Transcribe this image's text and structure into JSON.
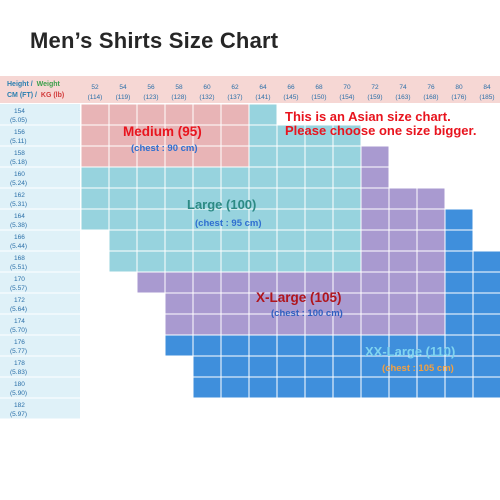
{
  "title": "Men’s Shirts Size Chart",
  "header": {
    "label_line1_a": "Height /",
    "label_line1_b": "Weight",
    "label_line2_a": "CM (FT) /",
    "label_line2_b": "KG (lb)"
  },
  "weights": [
    {
      "kg": "52",
      "lb": "(114)"
    },
    {
      "kg": "54",
      "lb": "(119)"
    },
    {
      "kg": "56",
      "lb": "(123)"
    },
    {
      "kg": "58",
      "lb": "(128)"
    },
    {
      "kg": "60",
      "lb": "(132)"
    },
    {
      "kg": "62",
      "lb": "(137)"
    },
    {
      "kg": "64",
      "lb": "(141)"
    },
    {
      "kg": "66",
      "lb": "(145)"
    },
    {
      "kg": "68",
      "lb": "(150)"
    },
    {
      "kg": "70",
      "lb": "(154)"
    },
    {
      "kg": "72",
      "lb": "(159)"
    },
    {
      "kg": "74",
      "lb": "(163)"
    },
    {
      "kg": "76",
      "lb": "(168)"
    },
    {
      "kg": "80",
      "lb": "(176)"
    },
    {
      "kg": "84",
      "lb": "(185)"
    }
  ],
  "heights": [
    {
      "cm": "154",
      "ft": "(5.05)"
    },
    {
      "cm": "156",
      "ft": "(5.11)"
    },
    {
      "cm": "158",
      "ft": "(5.18)"
    },
    {
      "cm": "160",
      "ft": "(5.24)"
    },
    {
      "cm": "162",
      "ft": "(5.31)"
    },
    {
      "cm": "164",
      "ft": "(5.38)"
    },
    {
      "cm": "166",
      "ft": "(5.44)"
    },
    {
      "cm": "168",
      "ft": "(5.51)"
    },
    {
      "cm": "170",
      "ft": "(5.57)"
    },
    {
      "cm": "172",
      "ft": "(5.64)"
    },
    {
      "cm": "174",
      "ft": "(5.70)"
    },
    {
      "cm": "176",
      "ft": "(5.77)"
    },
    {
      "cm": "178",
      "ft": "(5.83)"
    },
    {
      "cm": "180",
      "ft": "(5.90)"
    },
    {
      "cm": "182",
      "ft": "(5.97)"
    }
  ],
  "grid_cells": [
    "PPPPPPCWWWWWWWW",
    "PPPPPPCCCCWWWWW",
    "PPPPPPCCCCLWWWW",
    "CCCCCCCCCCLWWWW",
    "CCCCCCCCCCLLLWW",
    "CCCCCCCCCCLLLBW",
    "WCCCCCCCCCLLLBW",
    "WCCCCCCCCCLLLBB",
    "WWLLLLLLLLLLLBB",
    "WWWLLLLLLLLLLBB",
    "WWWLLLLLLLLLLBB",
    "WWWBBBBBBBBBBBB",
    "WWWWBBBBBBBBBBB",
    "WWWWBBBBBBBBBBB",
    "WWWWWWWWWWWWWWW"
  ],
  "colors": {
    "P": "#e8b4b6",
    "C": "#97d3de",
    "L": "#a99ad0",
    "B": "#3f8fdc",
    "W": "#ffffff",
    "header_bg": "#f6d7d4",
    "row_label_bg": "#dff1f8",
    "red_note": "#e8141e"
  },
  "note": {
    "line1": "This is an Asian size chart.",
    "line2": "Please choose one size bigger."
  },
  "sizes": [
    {
      "name": "Medium (95)",
      "chest": "(chest : 90 cm)",
      "name_color": "#e8141e",
      "chest_color": "#2f6fd0"
    },
    {
      "name": "Large (100)",
      "chest": "(chest : 95 cm)",
      "name_color": "#2c8a84",
      "chest_color": "#2f6fd0"
    },
    {
      "name": "X-Large (105)",
      "chest": "(chest : 100 cm)",
      "name_color": "#b0151c",
      "chest_color": "#2f5fc0"
    },
    {
      "name": "XX-Large (110)",
      "chest": "(chest : 105 cm)",
      "name_color": "#7fd4f0",
      "chest_color": "#f3a040"
    }
  ]
}
